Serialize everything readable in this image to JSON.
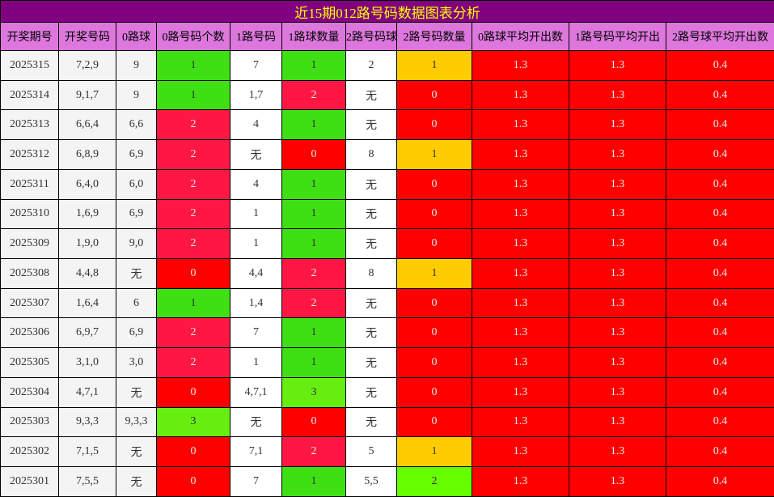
{
  "title": "近15期012路号码数据图表分析",
  "headers": [
    "开奖期号",
    "开奖号码",
    "0路球",
    "0路号码个数",
    "1路号码",
    "1路球数量",
    "2路号码球",
    "2路号码数量",
    "0路球平均开出数",
    "1路号码平均开出",
    "2路号球平均开出数"
  ],
  "column_bg": [
    "#f4f4f4",
    "#f4f4f4",
    "#f4f4f4",
    null,
    "#ffffff",
    null,
    "#ffffff",
    null,
    "#ff0000",
    "#ff0000",
    "#ff0000"
  ],
  "rows": [
    [
      "2025315",
      "7,2,9",
      "9",
      {
        "text": "1",
        "bg": "#3ee014"
      },
      "7",
      {
        "text": "1",
        "bg": "#3ee014"
      },
      "2",
      {
        "text": "1",
        "bg": "#ffcc00"
      },
      "1.3",
      "1.3",
      "0.4"
    ],
    [
      "2025314",
      "9,1,7",
      "9",
      {
        "text": "1",
        "bg": "#3ee014"
      },
      "1,7",
      {
        "text": "2",
        "bg": "#ff1744"
      },
      "无",
      {
        "text": "0",
        "bg": "#ff0000"
      },
      "1.3",
      "1.3",
      "0.4"
    ],
    [
      "2025313",
      "6,6,4",
      "6,6",
      {
        "text": "2",
        "bg": "#ff1744"
      },
      "4",
      {
        "text": "1",
        "bg": "#3ee014"
      },
      "无",
      {
        "text": "0",
        "bg": "#ff0000"
      },
      "1.3",
      "1.3",
      "0.4"
    ],
    [
      "2025312",
      "6,8,9",
      "6,9",
      {
        "text": "2",
        "bg": "#ff1744"
      },
      "无",
      {
        "text": "0",
        "bg": "#ff0000"
      },
      "8",
      {
        "text": "1",
        "bg": "#ffcc00"
      },
      "1.3",
      "1.3",
      "0.4"
    ],
    [
      "2025311",
      "6,4,0",
      "6,0",
      {
        "text": "2",
        "bg": "#ff1744"
      },
      "4",
      {
        "text": "1",
        "bg": "#3ee014"
      },
      "无",
      {
        "text": "0",
        "bg": "#ff0000"
      },
      "1.3",
      "1.3",
      "0.4"
    ],
    [
      "2025310",
      "1,6,9",
      "6,9",
      {
        "text": "2",
        "bg": "#ff1744"
      },
      "1",
      {
        "text": "1",
        "bg": "#3ee014"
      },
      "无",
      {
        "text": "0",
        "bg": "#ff0000"
      },
      "1.3",
      "1.3",
      "0.4"
    ],
    [
      "2025309",
      "1,9,0",
      "9,0",
      {
        "text": "2",
        "bg": "#ff1744"
      },
      "1",
      {
        "text": "1",
        "bg": "#3ee014"
      },
      "无",
      {
        "text": "0",
        "bg": "#ff0000"
      },
      "1.3",
      "1.3",
      "0.4"
    ],
    [
      "2025308",
      "4,4,8",
      "无",
      {
        "text": "0",
        "bg": "#ff0000"
      },
      "4,4",
      {
        "text": "2",
        "bg": "#ff1744"
      },
      "8",
      {
        "text": "1",
        "bg": "#ffcc00"
      },
      "1.3",
      "1.3",
      "0.4"
    ],
    [
      "2025307",
      "1,6,4",
      "6",
      {
        "text": "1",
        "bg": "#3ee014"
      },
      "1,4",
      {
        "text": "2",
        "bg": "#ff1744"
      },
      "无",
      {
        "text": "0",
        "bg": "#ff0000"
      },
      "1.3",
      "1.3",
      "0.4"
    ],
    [
      "2025306",
      "6,9,7",
      "6,9",
      {
        "text": "2",
        "bg": "#ff1744"
      },
      "7",
      {
        "text": "1",
        "bg": "#3ee014"
      },
      "无",
      {
        "text": "0",
        "bg": "#ff0000"
      },
      "1.3",
      "1.3",
      "0.4"
    ],
    [
      "2025305",
      "3,1,0",
      "3,0",
      {
        "text": "2",
        "bg": "#ff1744"
      },
      "1",
      {
        "text": "1",
        "bg": "#3ee014"
      },
      "无",
      {
        "text": "0",
        "bg": "#ff0000"
      },
      "1.3",
      "1.3",
      "0.4"
    ],
    [
      "2025304",
      "4,7,1",
      "无",
      {
        "text": "0",
        "bg": "#ff0000"
      },
      "4,7,1",
      {
        "text": "3",
        "bg": "#66ee11"
      },
      "无",
      {
        "text": "0",
        "bg": "#ff0000"
      },
      "1.3",
      "1.3",
      "0.4"
    ],
    [
      "2025303",
      "9,3,3",
      "9,3,3",
      {
        "text": "3",
        "bg": "#66ee11"
      },
      "无",
      {
        "text": "0",
        "bg": "#ff0000"
      },
      "无",
      {
        "text": "0",
        "bg": "#ff0000"
      },
      "1.3",
      "1.3",
      "0.4"
    ],
    [
      "2025302",
      "7,1,5",
      "无",
      {
        "text": "0",
        "bg": "#ff0000"
      },
      "7,1",
      {
        "text": "2",
        "bg": "#ff1744"
      },
      "5",
      {
        "text": "1",
        "bg": "#ffcc00"
      },
      "1.3",
      "1.3",
      "0.4"
    ],
    [
      "2025301",
      "7,5,5",
      "无",
      {
        "text": "0",
        "bg": "#ff0000"
      },
      "7",
      {
        "text": "1",
        "bg": "#3ee014"
      },
      "5,5",
      {
        "text": "2",
        "bg": "#66ff00"
      },
      "1.3",
      "1.3",
      "0.4"
    ]
  ]
}
